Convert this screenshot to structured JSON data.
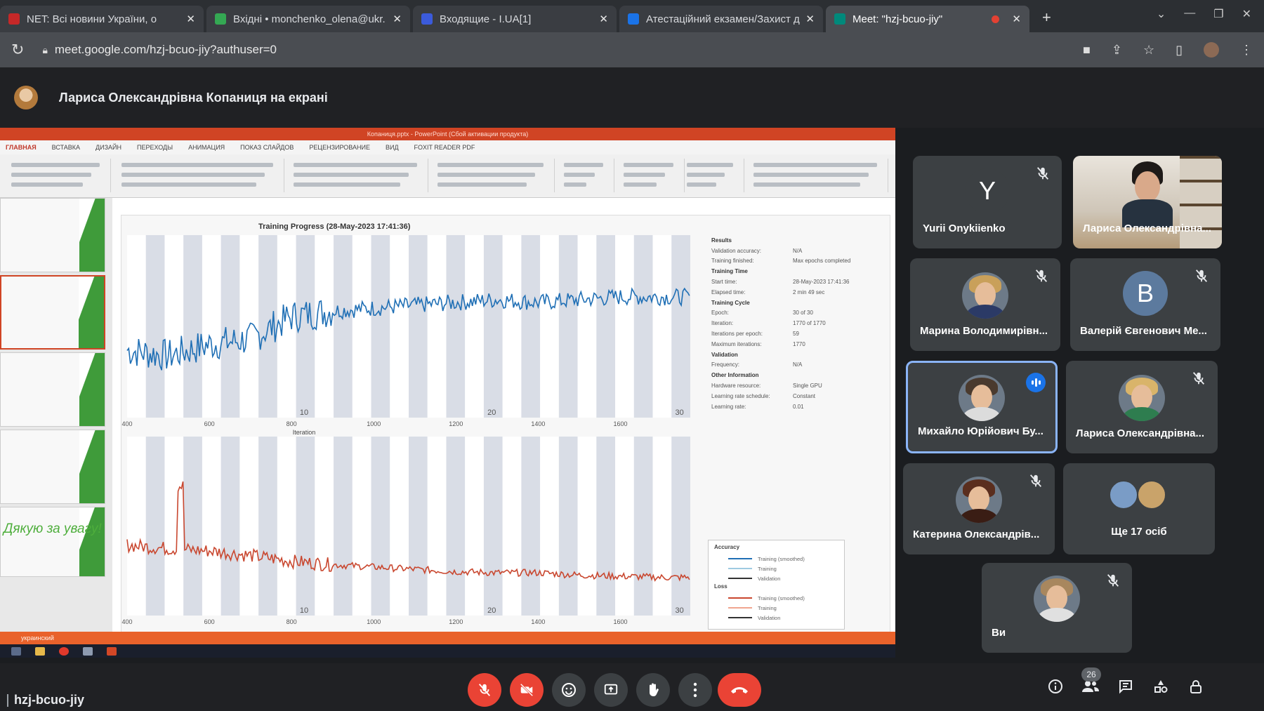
{
  "browser": {
    "tabs": [
      {
        "label": "NET: Всі новини України, о",
        "fav": "#c62828"
      },
      {
        "label": "Вхідні • monchenko_olena@ukr.",
        "fav": "#34a853"
      },
      {
        "label": "Входящие - I.UA[1]",
        "fav": "#3b5bdb"
      },
      {
        "label": "Атестаційний екзамен/Захист д",
        "fav": "#1a73e8"
      },
      {
        "label": "Meet: \"hzj-bcuo-jiy\"",
        "fav": "#00897b"
      }
    ],
    "new_tab": "+",
    "url": "meet.google.com/hzj-bcuo-jiy?authuser=0"
  },
  "meet": {
    "presenter_banner": "Лариса Олександрівна Копаниця на екрані",
    "meeting_code": "hzj-bcuo-jiy",
    "people_count": "26"
  },
  "screen": {
    "ribbon_title": "Копаниця.pptx - PowerPoint (Сбой активации продукта)",
    "ribbon_tabs": [
      "ГЛАВНАЯ",
      "ВСТАВКА",
      "ДИЗАЙН",
      "ПЕРЕХОДЫ",
      "АНИМАЦИЯ",
      "ПОКАЗ СЛАЙДОВ",
      "РЕЦЕНЗИРОВАНИЕ",
      "ВИД",
      "FOXIT READER PDF"
    ],
    "thanks_slide": "Дякую за увагу!",
    "status_left": "украинский"
  },
  "chart_data": {
    "type": "line",
    "title": "Training Progress (28-May-2023 17:41:36)",
    "xlabel": "Iteration",
    "x_ticks": [
      400,
      600,
      800,
      1000,
      1200,
      1400,
      1600
    ],
    "epoch_labels": [
      "10",
      "20",
      "30"
    ],
    "xlim": [
      400,
      1770
    ],
    "series": [
      {
        "name": "Training (smoothed)",
        "panel": "accuracy",
        "color": "#1f6fb5",
        "x": [
          400,
          500,
          600,
          700,
          800,
          900,
          1000,
          1100,
          1200,
          1300,
          1400,
          1500,
          1600,
          1700,
          1770
        ],
        "values": [
          62,
          60,
          64,
          66,
          74,
          76,
          77,
          78,
          79,
          80,
          79,
          80,
          81,
          81,
          81
        ]
      },
      {
        "name": "Training (smoothed)",
        "panel": "loss",
        "color": "#c9472f",
        "x": [
          400,
          500,
          600,
          700,
          800,
          900,
          1000,
          1100,
          1200,
          1300,
          1400,
          1500,
          1600,
          1700,
          1770
        ],
        "values": [
          0.55,
          0.52,
          0.5,
          0.46,
          0.41,
          0.38,
          0.36,
          0.34,
          0.32,
          0.31,
          0.31,
          0.29,
          0.28,
          0.27,
          0.27
        ]
      }
    ],
    "results": [
      {
        "k": "Results",
        "v": "",
        "sec": true
      },
      {
        "k": "Validation accuracy:",
        "v": "N/A"
      },
      {
        "k": "Training finished:",
        "v": "Max epochs completed"
      },
      {
        "k": "Training Time",
        "v": "",
        "sec": true
      },
      {
        "k": "Start time:",
        "v": "28-May-2023 17:41:36"
      },
      {
        "k": "Elapsed time:",
        "v": "2 min 49 sec"
      },
      {
        "k": "Training Cycle",
        "v": "",
        "sec": true
      },
      {
        "k": "Epoch:",
        "v": "30 of 30"
      },
      {
        "k": "Iteration:",
        "v": "1770 of 1770"
      },
      {
        "k": "Iterations per epoch:",
        "v": "59"
      },
      {
        "k": "Maximum iterations:",
        "v": "1770"
      },
      {
        "k": "Validation",
        "v": "",
        "sec": true
      },
      {
        "k": "Frequency:",
        "v": "N/A"
      },
      {
        "k": "Other Information",
        "v": "",
        "sec": true
      },
      {
        "k": "Hardware resource:",
        "v": "Single GPU"
      },
      {
        "k": "Learning rate schedule:",
        "v": "Constant"
      },
      {
        "k": "Learning rate:",
        "v": "0.01"
      }
    ],
    "legend": {
      "accuracy_title": "Accuracy",
      "loss_title": "Loss",
      "accuracy": [
        {
          "label": "Training (smoothed)",
          "color": "#1f6fb5"
        },
        {
          "label": "Training",
          "color": "#9ecae1"
        },
        {
          "label": "Validation",
          "color": "#333333"
        }
      ],
      "loss": [
        {
          "label": "Training (smoothed)",
          "color": "#c9472f"
        },
        {
          "label": "Training",
          "color": "#f0a58f"
        },
        {
          "label": "Validation",
          "color": "#333333"
        }
      ]
    }
  },
  "participants": [
    {
      "name": "Yurii Onykiienko",
      "type": "letter",
      "letter": "Y",
      "color": "#3c4043",
      "muted": true
    },
    {
      "name": "Лариса Олександрівна...",
      "type": "video",
      "muted": false
    },
    {
      "name": "Марина Володимирівн...",
      "type": "face",
      "hair": "#c9a05a",
      "body": "#2b3a66",
      "muted": true
    },
    {
      "name": "Валерій Євгенович Ме...",
      "type": "letter",
      "letter": "B",
      "color": "#5c7a9e",
      "muted": true
    },
    {
      "name": "Михайло Юрійович Бу...",
      "type": "face",
      "hair": "#4a3a2e",
      "body": "#dcdcdc",
      "muted": false,
      "speaking": true
    },
    {
      "name": "Лариса Олександрівна...",
      "type": "face",
      "hair": "#d9b46a",
      "body": "#2e7d4f",
      "muted": true
    },
    {
      "name": "Катерина Олександрів...",
      "type": "face",
      "hair": "#5a2e1e",
      "body": "#3a1d14",
      "muted": true
    },
    {
      "name": "Ще 17 осіб",
      "type": "group",
      "muted": false
    },
    {
      "name": "Ви",
      "type": "face",
      "hair": "#a8875e",
      "body": "#e0e0e0",
      "muted": true
    }
  ]
}
